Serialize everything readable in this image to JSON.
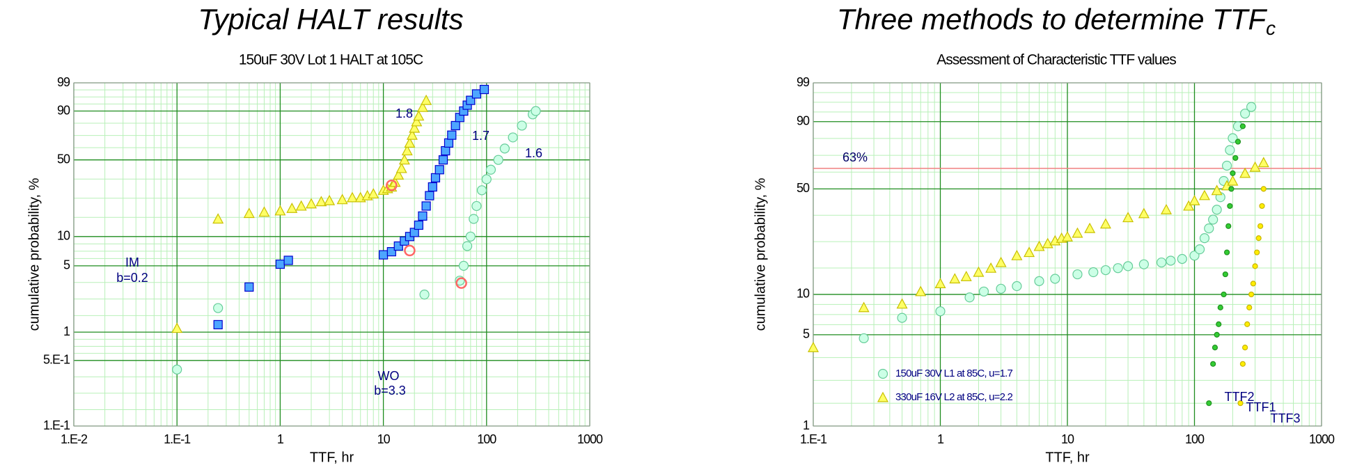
{
  "chart_data": [
    {
      "type": "scatter",
      "title": "Typical HALT results",
      "subtitle": "150uF 30V Lot 1 HALT at 105C",
      "xlabel": "TTF, hr",
      "ylabel": "cumulative probability, %",
      "xscale": "log",
      "yscale": "weibull",
      "grid": true,
      "minor_grid": true,
      "legend": false,
      "xlim": [
        0.01,
        1000
      ],
      "xticks": [
        {
          "value": 0.01,
          "label": "1.E-2"
        },
        {
          "value": 0.1,
          "label": "1.E-1"
        },
        1,
        10,
        100,
        1000
      ],
      "ylim": [
        0.1,
        99
      ],
      "yticks": [
        {
          "value": 0.1,
          "label": "1.E-1"
        },
        {
          "value": 0.5,
          "label": "5.E-1"
        },
        1,
        5,
        10,
        50,
        90,
        99
      ],
      "series": [
        {
          "name": "1.8",
          "marker": "triangle",
          "color": "#ffff66",
          "edgecolor": "#c8c000",
          "x": [
            0.1,
            0.25,
            0.5,
            0.7,
            1,
            1.3,
            1.6,
            2,
            2.5,
            3,
            4,
            5,
            6,
            7,
            8,
            10,
            11,
            12,
            13,
            14,
            15,
            16,
            17,
            18,
            19,
            20,
            21,
            22,
            24,
            26
          ],
          "values": [
            1.1,
            15,
            17,
            17.5,
            18,
            19,
            20,
            21,
            22,
            22.5,
            23,
            24,
            24,
            25,
            26,
            28,
            29,
            30,
            33,
            38,
            43,
            50,
            58,
            65,
            72,
            78,
            83,
            87,
            92,
            95
          ]
        },
        {
          "name": "1.7",
          "marker": "square",
          "color": "#4da6ff",
          "edgecolor": "#0000cc",
          "x": [
            0.25,
            0.5,
            1,
            1.2,
            10,
            12,
            14,
            16,
            18,
            20,
            22,
            24,
            26,
            28,
            30,
            32,
            35,
            38,
            40,
            43,
            46,
            50,
            55,
            60,
            65,
            70,
            80,
            95
          ],
          "values": [
            1.2,
            3,
            5.2,
            5.7,
            6.5,
            7,
            8,
            9,
            10,
            11,
            13,
            16,
            20,
            25,
            30,
            36,
            42,
            50,
            58,
            65,
            72,
            80,
            86,
            90,
            93,
            95,
            97,
            98
          ]
        },
        {
          "name": "1.6",
          "marker": "circle",
          "color": "#ccffe6",
          "edgecolor": "#66cc99",
          "x": [
            0.1,
            0.25,
            25,
            55,
            60,
            65,
            70,
            75,
            80,
            90,
            100,
            110,
            130,
            150,
            180,
            220,
            280,
            300
          ],
          "values": [
            0.4,
            1.8,
            2.5,
            3.5,
            5,
            8,
            10,
            15,
            20,
            28,
            35,
            42,
            50,
            60,
            70,
            80,
            88,
            90
          ]
        },
        {
          "marker": "ring",
          "color": "#ff6666",
          "edgecolor": "#ff6666",
          "x": [
            12,
            18,
            57
          ],
          "values": [
            31,
            7.2,
            3.3
          ]
        }
      ],
      "annotations": [
        "IM",
        "b=0.2",
        "WO",
        "b=3.3"
      ]
    },
    {
      "type": "scatter",
      "title": "Three methods to determine TTF",
      "title_sub": "c",
      "subtitle": "Assessment of Characteristic TTF values",
      "xlabel": "TTF, hr",
      "ylabel": "cumulative probability, %",
      "xscale": "log",
      "yscale": "weibull",
      "grid": true,
      "minor_grid": true,
      "legend": true,
      "legend_loc": "lower left",
      "xlim": [
        0.1,
        1000
      ],
      "xticks": [
        {
          "value": 0.1,
          "label": "1.E-1"
        },
        1,
        10,
        100,
        1000
      ],
      "ylim": [
        1,
        99
      ],
      "yticks": [
        1,
        5,
        10,
        50,
        90,
        99
      ],
      "hline": {
        "value": 63.2,
        "label": "63%",
        "color": "#f08080"
      },
      "series": [
        {
          "name": "150uF 30V L1 at 85C, u=1.7",
          "marker": "circle",
          "color": "#ccffe6",
          "edgecolor": "#66cc99",
          "x": [
            0.25,
            0.5,
            1,
            1.7,
            2.2,
            3,
            4,
            6,
            8,
            12,
            16,
            20,
            25,
            30,
            40,
            55,
            65,
            80,
            100,
            110,
            120,
            130,
            140,
            150,
            160,
            170,
            180,
            190,
            200,
            220,
            250,
            280
          ],
          "values": [
            4.7,
            6.7,
            7.5,
            9.5,
            10.5,
            11,
            11.5,
            12.5,
            13,
            14,
            14.5,
            15,
            15.5,
            16,
            16.5,
            17,
            17.5,
            18,
            19,
            21,
            25,
            29,
            33,
            38,
            45,
            55,
            65,
            75,
            82,
            88,
            93,
            95
          ]
        },
        {
          "name": "330uF 16V L2 at 85C, u=2.2",
          "marker": "triangle",
          "color": "#ffff66",
          "edgecolor": "#c8c000",
          "x": [
            0.1,
            0.25,
            0.5,
            0.7,
            1,
            1.3,
            1.6,
            2,
            2.5,
            3,
            4,
            5,
            6,
            7,
            8,
            9,
            10,
            12,
            15,
            20,
            30,
            40,
            60,
            90,
            100,
            120,
            150,
            180,
            200,
            250,
            300,
            350
          ],
          "values": [
            4,
            8,
            8.5,
            10.5,
            12,
            13,
            13.5,
            14.5,
            15.5,
            17,
            19,
            20,
            22,
            23,
            24,
            25,
            25.5,
            27,
            29,
            31,
            34,
            36,
            38,
            40,
            43,
            46,
            49,
            52,
            55,
            60,
            64,
            67
          ]
        },
        {
          "marker": "dot",
          "color": "#33cc33",
          "edgecolor": "#1f8f1f",
          "x": [
            130,
            140,
            145,
            150,
            155,
            160,
            170,
            175,
            180,
            185,
            190,
            195,
            200,
            210,
            220,
            240
          ],
          "values": [
            1.5,
            3,
            4,
            5,
            6,
            8,
            10,
            14,
            20,
            30,
            40,
            50,
            60,
            70,
            80,
            88
          ]
        },
        {
          "marker": "dot",
          "color": "#ffee00",
          "edgecolor": "#c8b400",
          "x": [
            230,
            240,
            250,
            260,
            270,
            280,
            290,
            300,
            310,
            320,
            330,
            340,
            350
          ],
          "values": [
            1.5,
            3,
            4,
            6,
            8,
            10,
            12,
            16,
            20,
            25,
            30,
            40,
            50
          ]
        }
      ],
      "annotations": [
        "TTF2",
        "TTF1",
        "TTF3"
      ]
    }
  ]
}
